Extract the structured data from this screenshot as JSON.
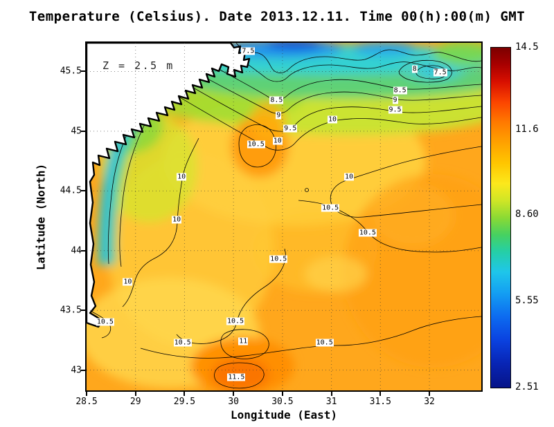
{
  "title": "Temperature (Celsius). Date 2013.12.11. Time 00(h):00(m) GMT",
  "annotation": "Z = 2.5 m",
  "axes": {
    "xlabel": "Longitude (East)",
    "ylabel": "Latitude (North)",
    "x_ticks": [
      28.5,
      29,
      29.5,
      30,
      30.5,
      31,
      31.5,
      32
    ],
    "x_tick_labels": [
      "28.5",
      "29",
      "29.5",
      "30",
      "30.5",
      "31",
      "31.5",
      "32"
    ],
    "y_ticks": [
      43,
      43.5,
      44,
      44.5,
      45,
      45.5
    ],
    "y_tick_labels": [
      "43",
      "43.5",
      "44",
      "44.5",
      "45",
      "45.5"
    ],
    "xlim": [
      28.5,
      32.53
    ],
    "ylim": [
      42.83,
      45.74
    ]
  },
  "colorbar": {
    "orientation": "vertical",
    "min": 2.51,
    "max": 14.5,
    "ticks": [
      14.5,
      11.6,
      8.6,
      5.55,
      2.51
    ],
    "tick_labels": [
      "14.5",
      "11.6",
      "8.60",
      "5.55",
      "2.51"
    ]
  },
  "chart_data": {
    "type": "heatmap",
    "title": "Temperature (Celsius). Date 2013.12.11. Time 00(h):00(m) GMT",
    "variable": "Temperature (Celsius)",
    "date": "2013.12.11",
    "time": "00(h):00(m) GMT",
    "depth_annotation": "Z = 2.5 m",
    "xlabel": "Longitude (East)",
    "ylabel": "Latitude (North)",
    "xlim": [
      28.5,
      32.53
    ],
    "ylim": [
      42.83,
      45.74
    ],
    "grid": "dotted",
    "value_range": [
      2.51,
      14.5
    ],
    "colorbar_ticks": [
      14.5,
      11.6,
      8.6,
      5.55,
      2.51
    ],
    "contour_interval": 0.5,
    "map_features": [
      "white land mask with black coastline in upper-left",
      "cool cyan-blue water band along northern coast",
      "warm orange core near 30.0E 43.0N"
    ],
    "contour_labels": [
      {
        "value": 7.5,
        "lon": 30.15,
        "lat": 45.67
      },
      {
        "value": 8,
        "lon": 31.85,
        "lat": 45.52
      },
      {
        "value": 7.5,
        "lon": 32.11,
        "lat": 45.49
      },
      {
        "value": 8.5,
        "lon": 31.7,
        "lat": 45.34
      },
      {
        "value": 9,
        "lon": 31.65,
        "lat": 45.26
      },
      {
        "value": 9.5,
        "lon": 31.65,
        "lat": 45.18
      },
      {
        "value": 8.5,
        "lon": 30.44,
        "lat": 45.26
      },
      {
        "value": 9,
        "lon": 30.46,
        "lat": 45.13
      },
      {
        "value": 10,
        "lon": 31.01,
        "lat": 45.1
      },
      {
        "value": 9.5,
        "lon": 30.58,
        "lat": 45.02
      },
      {
        "value": 10,
        "lon": 30.45,
        "lat": 44.92
      },
      {
        "value": 10.5,
        "lon": 30.23,
        "lat": 44.89
      },
      {
        "value": 10,
        "lon": 29.47,
        "lat": 44.62
      },
      {
        "value": 10,
        "lon": 31.18,
        "lat": 44.62
      },
      {
        "value": 10.5,
        "lon": 30.99,
        "lat": 44.36
      },
      {
        "value": 10,
        "lon": 29.42,
        "lat": 44.26
      },
      {
        "value": 10.5,
        "lon": 31.37,
        "lat": 44.15
      },
      {
        "value": 10.5,
        "lon": 30.46,
        "lat": 43.93
      },
      {
        "value": 10,
        "lon": 28.92,
        "lat": 43.74
      },
      {
        "value": 10.5,
        "lon": 28.69,
        "lat": 43.4
      },
      {
        "value": 10.5,
        "lon": 30.02,
        "lat": 43.41
      },
      {
        "value": 10.5,
        "lon": 29.48,
        "lat": 43.23
      },
      {
        "value": 11,
        "lon": 30.1,
        "lat": 43.24
      },
      {
        "value": 10.5,
        "lon": 30.93,
        "lat": 43.23
      },
      {
        "value": 11.5,
        "lon": 30.03,
        "lat": 42.94
      }
    ]
  }
}
